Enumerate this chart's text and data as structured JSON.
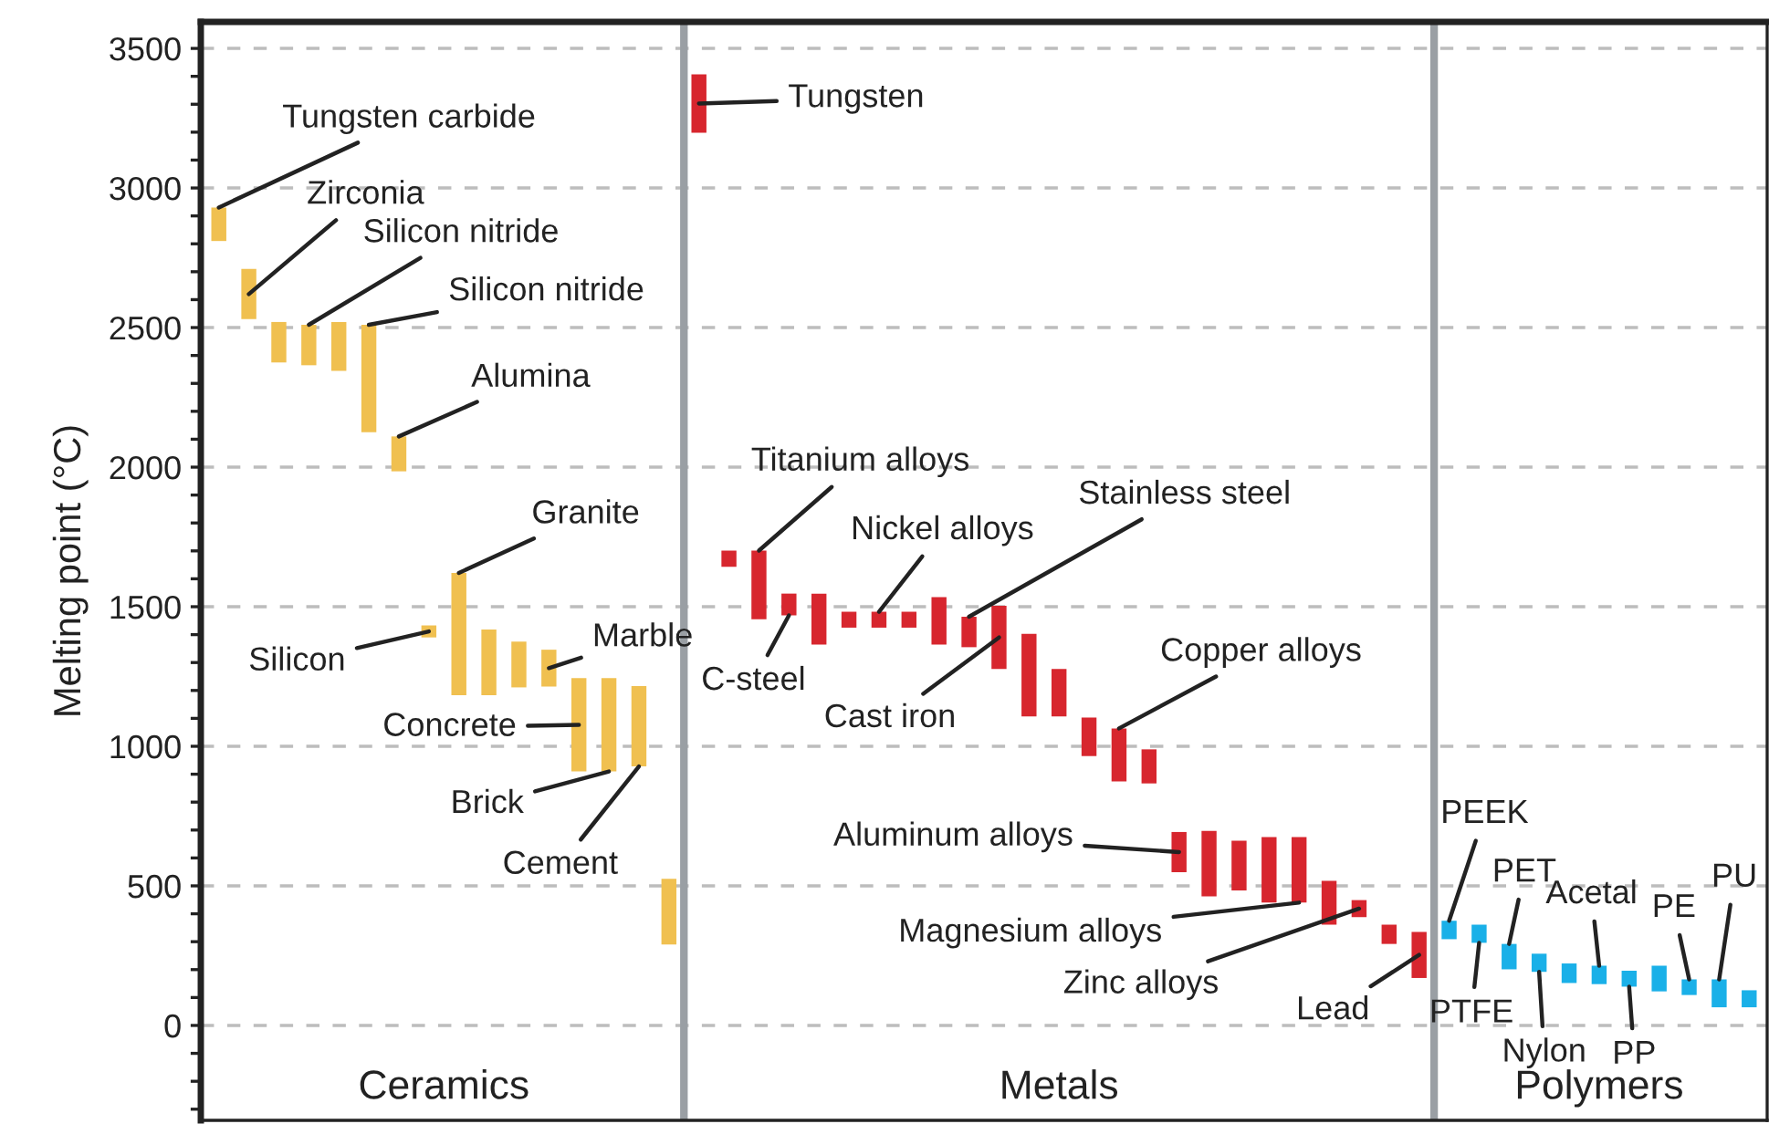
{
  "chart_data": {
    "type": "bar",
    "ylabel": "Melting point (°C)",
    "categories": [
      null,
      null,
      null,
      null,
      null,
      null,
      null,
      null,
      null,
      null,
      null,
      null,
      null,
      null,
      null,
      null,
      null,
      null,
      null,
      null,
      null,
      null,
      null,
      null,
      null,
      null,
      null,
      null,
      null,
      null,
      null,
      null,
      null,
      null,
      null,
      null,
      null,
      null,
      null,
      null,
      null,
      null,
      null,
      null,
      null,
      null,
      null,
      null,
      null,
      null,
      null,
      null
    ],
    "base": [
      2810,
      2530,
      2375,
      2365,
      2345,
      2125,
      1985,
      1390,
      1183,
      1183,
      1211,
      1214,
      910,
      910,
      928,
      290,
      3198,
      1643,
      1455,
      1469,
      1364,
      1425,
      1425,
      1425,
      1364,
      1355,
      1277,
      1107,
      1107,
      965,
      874,
      867,
      549,
      462,
      484,
      440,
      440,
      361,
      388,
      292,
      170,
      309,
      296,
      201,
      192,
      152,
      148,
      139,
      122,
      109,
      65,
      65
    ],
    "values": [
      120,
      180,
      145,
      145,
      175,
      385,
      125,
      43,
      438,
      235,
      164,
      132,
      334,
      334,
      288,
      235,
      209,
      58,
      246,
      78,
      183,
      57,
      57,
      57,
      170,
      109,
      226,
      296,
      170,
      138,
      190,
      122,
      144,
      235,
      178,
      235,
      235,
      157,
      61,
      69,
      165,
      66,
      65,
      91,
      65,
      70,
      66,
      57,
      92,
      56,
      100,
      61
    ],
    "colors": [
      "#f0c050",
      "#f0c050",
      "#f0c050",
      "#f0c050",
      "#f0c050",
      "#f0c050",
      "#f0c050",
      "#f0c050",
      "#f0c050",
      "#f0c050",
      "#f0c050",
      "#f0c050",
      "#f0c050",
      "#f0c050",
      "#f0c050",
      "#f0c050",
      "#d7262e",
      "#d7262e",
      "#d7262e",
      "#d7262e",
      "#d7262e",
      "#d7262e",
      "#d7262e",
      "#d7262e",
      "#d7262e",
      "#d7262e",
      "#d7262e",
      "#d7262e",
      "#d7262e",
      "#d7262e",
      "#d7262e",
      "#d7262e",
      "#d7262e",
      "#d7262e",
      "#d7262e",
      "#d7262e",
      "#d7262e",
      "#d7262e",
      "#d7262e",
      "#d7262e",
      "#d7262e",
      "#1ab0e8",
      "#1ab0e8",
      "#1ab0e8",
      "#1ab0e8",
      "#1ab0e8",
      "#1ab0e8",
      "#1ab0e8",
      "#1ab0e8",
      "#1ab0e8",
      "#1ab0e8",
      "#1ab0e8"
    ],
    "annotations": [
      "Ceramics",
      "Metals",
      "Polymers",
      "Tungsten carbide",
      "Zirconia",
      "Silicon nitride",
      "Silicon nitride",
      "Alumina",
      "Granite",
      "Silicon",
      "Marble",
      "Concrete",
      "Brick",
      "Cement",
      "Tungsten",
      "Titanium alloys",
      "Nickel alloys",
      "Stainless steel",
      "C-steel",
      "Cast iron",
      "Copper alloys",
      "Aluminum alloys",
      "Magnesium alloys",
      "Zinc alloys",
      "Lead",
      "PEEK",
      "PTFE",
      "PET",
      "Nylon",
      "Acetal",
      "PP",
      "PE",
      "PU"
    ],
    "ylim": [
      -340,
      3595
    ],
    "yticks": [
      {
        "value": -300,
        "label": null
      },
      {
        "value": -200,
        "label": null
      },
      {
        "value": -100,
        "label": null
      },
      0,
      {
        "value": 100,
        "label": null
      },
      {
        "value": 200,
        "label": null
      },
      {
        "value": 300,
        "label": null
      },
      {
        "value": 400,
        "label": null
      },
      500,
      {
        "value": 600,
        "label": null
      },
      {
        "value": 700,
        "label": null
      },
      {
        "value": 800,
        "label": null
      },
      {
        "value": 900,
        "label": null
      },
      1000,
      {
        "value": 1100,
        "label": null
      },
      {
        "value": 1200,
        "label": null
      },
      {
        "value": 1300,
        "label": null
      },
      {
        "value": 1400,
        "label": null
      },
      1500,
      {
        "value": 1600,
        "label": null
      },
      {
        "value": 1700,
        "label": null
      },
      {
        "value": 1800,
        "label": null
      },
      {
        "value": 1900,
        "label": null
      },
      2000,
      {
        "value": 2100,
        "label": null
      },
      {
        "value": 2200,
        "label": null
      },
      {
        "value": 2300,
        "label": null
      },
      {
        "value": 2400,
        "label": null
      },
      2500,
      {
        "value": 2600,
        "label": null
      },
      {
        "value": 2700,
        "label": null
      },
      {
        "value": 2800,
        "label": null
      },
      {
        "value": 2900,
        "label": null
      },
      3000,
      {
        "value": 3100,
        "label": null
      },
      {
        "value": 3200,
        "label": null
      },
      {
        "value": 3300,
        "label": null
      },
      {
        "value": 3400,
        "label": null
      },
      3500
    ],
    "tick_labels": "y",
    "grid": "y"
  }
}
